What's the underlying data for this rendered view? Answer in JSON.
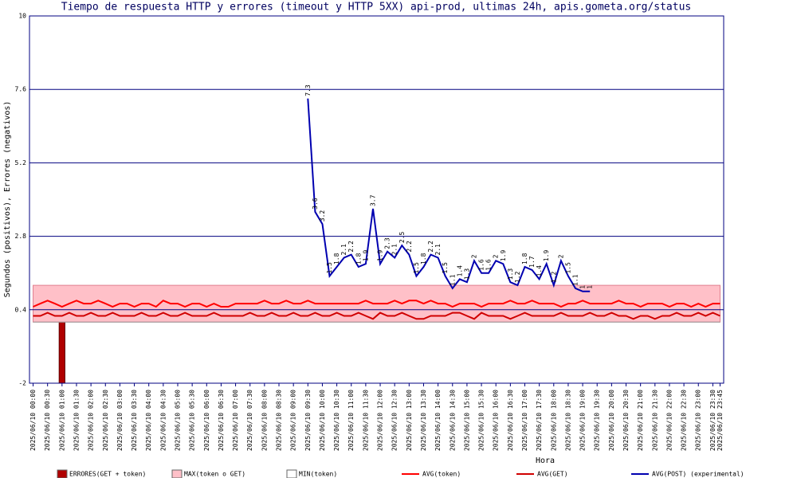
{
  "chart_data": {
    "type": "combo",
    "title": "Tiempo de respuesta HTTP y errores (timeout y HTTP 5XX) api-prod, ultimas 24h, apis.gometa.org/status",
    "x_label": "Hora",
    "y_label": "Segundos (positivos), Errores (negativos)",
    "ylim": [
      -2,
      10
    ],
    "yticks": [
      -2,
      0.4,
      2.8,
      5.2,
      7.6,
      10
    ],
    "grid": true,
    "categories": [
      "2025/06/10 00:00",
      null,
      "2025/06/10 00:30",
      null,
      "2025/06/10 01:00",
      null,
      "2025/06/10 01:30",
      null,
      "2025/06/10 02:00",
      null,
      "2025/06/10 02:30",
      null,
      "2025/06/10 03:00",
      null,
      "2025/06/10 03:30",
      null,
      "2025/06/10 04:00",
      null,
      "2025/06/10 04:30",
      null,
      "2025/06/10 05:00",
      null,
      "2025/06/10 05:30",
      null,
      "2025/06/10 06:00",
      null,
      "2025/06/10 06:30",
      null,
      "2025/06/10 07:00",
      null,
      "2025/06/10 07:30",
      null,
      "2025/06/10 08:00",
      null,
      "2025/06/10 08:30",
      null,
      "2025/06/10 09:00",
      null,
      "2025/06/10 09:30",
      null,
      "2025/06/10 10:00",
      null,
      "2025/06/10 10:30",
      null,
      "2025/06/10 11:00",
      null,
      "2025/06/10 11:30",
      null,
      "2025/06/10 12:00",
      null,
      "2025/06/10 12:30",
      null,
      "2025/06/10 13:00",
      null,
      "2025/06/10 13:30",
      null,
      "2025/06/10 14:00",
      null,
      "2025/06/10 14:30",
      null,
      "2025/06/10 15:00",
      null,
      "2025/06/10 15:30",
      null,
      "2025/06/10 16:00",
      null,
      "2025/06/10 16:30",
      null,
      "2025/06/10 17:00",
      null,
      "2025/06/10 17:30",
      null,
      "2025/06/10 18:00",
      null,
      "2025/06/10 18:30",
      null,
      "2025/06/10 19:00",
      null,
      "2025/06/10 19:30",
      null,
      "2025/06/10 20:00",
      null,
      "2025/06/10 20:30",
      null,
      "2025/06/10 21:00",
      null,
      "2025/06/10 21:30",
      null,
      "2025/06/10 22:00",
      null,
      "2025/06/10 22:30",
      null,
      "2025/06/10 23:00",
      null,
      "2025/06/10 23:30",
      "2025/06/10 23:45"
    ],
    "series": [
      {
        "name": "ERRORES(GET + token)",
        "type": "bar",
        "color": "#b00000",
        "values": [
          0,
          0,
          0,
          0,
          -2,
          0,
          0,
          0,
          0,
          0,
          0,
          0,
          0,
          0,
          0,
          0,
          0,
          0,
          0,
          0,
          0,
          0,
          0,
          0,
          0,
          0,
          0,
          0,
          0,
          0,
          0,
          0,
          0,
          0,
          0,
          0,
          0,
          0,
          0,
          0,
          0,
          0,
          0,
          0,
          0,
          0,
          0,
          0,
          0,
          0,
          0,
          0,
          0,
          0,
          0,
          0,
          0,
          0,
          0,
          0,
          0,
          0,
          0,
          0,
          0,
          0,
          0,
          0,
          0,
          0,
          0,
          0,
          0,
          0,
          0,
          0,
          0,
          0,
          0,
          0,
          0,
          0,
          0,
          0,
          0,
          0,
          0,
          0,
          0,
          0,
          0,
          0,
          0,
          0,
          0,
          0
        ]
      },
      {
        "name": "MAX(token o GET)",
        "type": "area",
        "color": "#ffc0c8",
        "values": [
          1.2,
          1.2,
          1.2,
          1.2,
          1.2,
          1.2,
          1.2,
          1.2,
          1.2,
          1.2,
          1.2,
          1.2,
          1.2,
          1.2,
          1.2,
          1.2,
          1.2,
          1.2,
          1.2,
          1.2,
          1.2,
          1.2,
          1.2,
          1.2,
          1.2,
          1.2,
          1.2,
          1.2,
          1.2,
          1.2,
          1.2,
          1.2,
          1.2,
          1.2,
          1.2,
          1.2,
          1.2,
          1.2,
          1.2,
          1.2,
          1.2,
          1.2,
          1.2,
          1.2,
          1.2,
          1.2,
          1.2,
          1.2,
          1.2,
          1.2,
          1.2,
          1.2,
          1.2,
          1.2,
          1.2,
          1.2,
          1.2,
          1.2,
          1.2,
          1.2,
          1.2,
          1.2,
          1.2,
          1.2,
          1.2,
          1.2,
          1.2,
          1.2,
          1.2,
          1.2,
          1.2,
          1.2,
          1.2,
          1.2,
          1.2,
          1.2,
          1.2,
          1.2,
          1.2,
          1.2,
          1.2,
          1.2,
          1.2,
          1.2,
          1.2,
          1.2,
          1.2,
          1.2,
          1.2,
          1.2,
          1.2,
          1.2,
          1.2,
          1.2,
          1.2,
          1.2
        ]
      },
      {
        "name": "MIN(token)",
        "type": "base",
        "color": "#ffffff",
        "values": [
          0,
          0,
          0,
          0,
          0,
          0,
          0,
          0,
          0,
          0,
          0,
          0,
          0,
          0,
          0,
          0,
          0,
          0,
          0,
          0,
          0,
          0,
          0,
          0,
          0,
          0,
          0,
          0,
          0,
          0,
          0,
          0,
          0,
          0,
          0,
          0,
          0,
          0,
          0,
          0,
          0,
          0,
          0,
          0,
          0,
          0,
          0,
          0,
          0,
          0,
          0,
          0,
          0,
          0,
          0,
          0,
          0,
          0,
          0,
          0,
          0,
          0,
          0,
          0,
          0,
          0,
          0,
          0,
          0,
          0,
          0,
          0,
          0,
          0,
          0,
          0,
          0,
          0,
          0,
          0,
          0,
          0,
          0,
          0,
          0,
          0,
          0,
          0,
          0,
          0,
          0,
          0,
          0,
          0,
          0,
          0
        ]
      },
      {
        "name": "AVG(token)",
        "type": "line",
        "color": "#ff0000",
        "values": [
          0.5,
          0.6,
          0.7,
          0.6,
          0.5,
          0.6,
          0.7,
          0.6,
          0.6,
          0.7,
          0.6,
          0.5,
          0.6,
          0.6,
          0.5,
          0.6,
          0.6,
          0.5,
          0.7,
          0.6,
          0.6,
          0.5,
          0.6,
          0.6,
          0.5,
          0.6,
          0.5,
          0.5,
          0.6,
          0.6,
          0.6,
          0.6,
          0.7,
          0.6,
          0.6,
          0.7,
          0.6,
          0.6,
          0.7,
          0.6,
          0.6,
          0.6,
          0.6,
          0.6,
          0.6,
          0.6,
          0.7,
          0.6,
          0.6,
          0.6,
          0.7,
          0.6,
          0.7,
          0.7,
          0.6,
          0.7,
          0.6,
          0.6,
          0.5,
          0.6,
          0.6,
          0.6,
          0.5,
          0.6,
          0.6,
          0.6,
          0.7,
          0.6,
          0.6,
          0.7,
          0.6,
          0.6,
          0.6,
          0.5,
          0.6,
          0.6,
          0.7,
          0.6,
          0.6,
          0.6,
          0.6,
          0.7,
          0.6,
          0.6,
          0.5,
          0.6,
          0.6,
          0.6,
          0.5,
          0.6,
          0.6,
          0.5,
          0.6,
          0.5,
          0.6,
          0.6
        ]
      },
      {
        "name": "AVG(GET)",
        "type": "line",
        "color": "#d00000",
        "values": [
          0.2,
          0.2,
          0.3,
          0.2,
          0.2,
          0.3,
          0.2,
          0.2,
          0.3,
          0.2,
          0.2,
          0.3,
          0.2,
          0.2,
          0.2,
          0.3,
          0.2,
          0.2,
          0.3,
          0.2,
          0.2,
          0.3,
          0.2,
          0.2,
          0.2,
          0.3,
          0.2,
          0.2,
          0.2,
          0.2,
          0.3,
          0.2,
          0.2,
          0.3,
          0.2,
          0.2,
          0.3,
          0.2,
          0.2,
          0.3,
          0.2,
          0.2,
          0.3,
          0.2,
          0.2,
          0.3,
          0.2,
          0.1,
          0.3,
          0.2,
          0.2,
          0.3,
          0.2,
          0.1,
          0.1,
          0.2,
          0.2,
          0.2,
          0.3,
          0.3,
          0.2,
          0.1,
          0.3,
          0.2,
          0.2,
          0.2,
          0.1,
          0.2,
          0.3,
          0.2,
          0.2,
          0.2,
          0.2,
          0.3,
          0.2,
          0.2,
          0.2,
          0.3,
          0.2,
          0.2,
          0.3,
          0.2,
          0.2,
          0.1,
          0.2,
          0.2,
          0.1,
          0.2,
          0.2,
          0.3,
          0.2,
          0.2,
          0.3,
          0.2,
          0.3,
          0.2
        ]
      },
      {
        "name": "AVG(POST) (experimental)",
        "type": "line",
        "labels": true,
        "color": "#0000b0",
        "values": [
          null,
          null,
          null,
          null,
          null,
          null,
          null,
          null,
          null,
          null,
          null,
          null,
          null,
          null,
          null,
          null,
          null,
          null,
          null,
          null,
          null,
          null,
          null,
          null,
          null,
          null,
          null,
          null,
          null,
          null,
          null,
          null,
          null,
          null,
          null,
          null,
          null,
          null,
          7.3,
          3.6,
          3.2,
          1.5,
          1.8,
          2.1,
          2.2,
          1.8,
          1.9,
          3.7,
          1.9,
          2.3,
          2.1,
          2.5,
          2.2,
          1.5,
          1.8,
          2.2,
          2.1,
          1.5,
          1.1,
          1.4,
          1.3,
          2,
          1.6,
          1.6,
          2,
          1.9,
          1.3,
          1.2,
          1.8,
          1.7,
          1.4,
          1.9,
          1.2,
          2,
          1.5,
          1.1,
          1,
          1,
          null,
          null,
          null,
          null,
          null,
          null,
          null,
          null,
          null,
          null,
          null,
          null,
          null,
          null,
          null,
          null,
          null,
          null
        ]
      }
    ]
  }
}
